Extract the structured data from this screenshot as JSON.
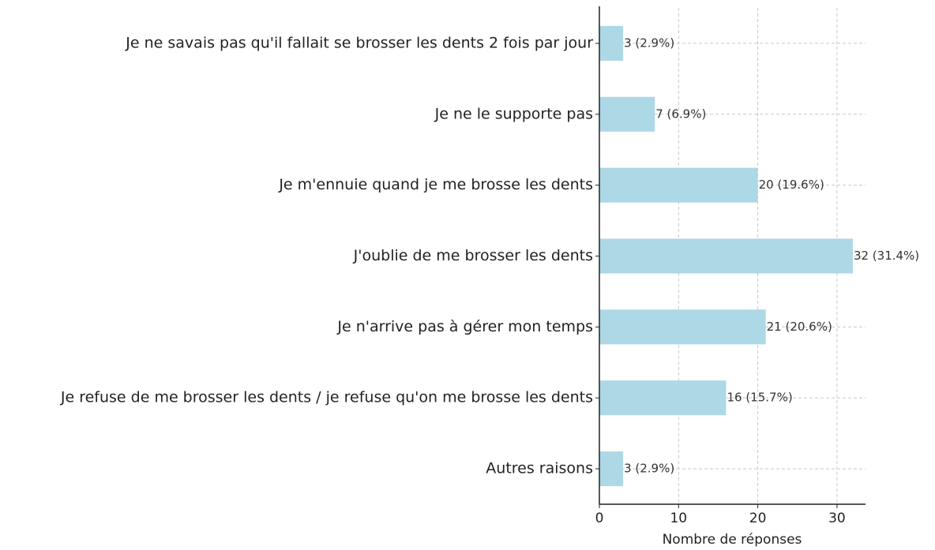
{
  "chart_data": {
    "type": "barh",
    "categories": [
      "Je ne savais pas qu'il fallait se brosser les dents 2 fois par jour",
      "Je ne le supporte pas",
      "Je m'ennuie quand je me brosse les dents",
      "J'oublie de me brosser les dents",
      "Je n'arrive pas à gérer mon temps",
      "Je refuse de me brosser les dents / je refuse qu'on me brosse les dents",
      "Autres raisons"
    ],
    "values": [
      3,
      7,
      20,
      32,
      21,
      16,
      3
    ],
    "value_labels": [
      "3 (2.9%)",
      "7 (6.9%)",
      "20 (19.6%)",
      "32 (31.4%)",
      "21 (20.6%)",
      "16 (15.7%)",
      "3 (2.9%)"
    ],
    "color": "#add8e6",
    "xlabel": "Nombre de réponses",
    "xlim": [
      0,
      33.6
    ],
    "xticks": [
      0,
      10,
      20,
      30
    ],
    "grid": true
  }
}
